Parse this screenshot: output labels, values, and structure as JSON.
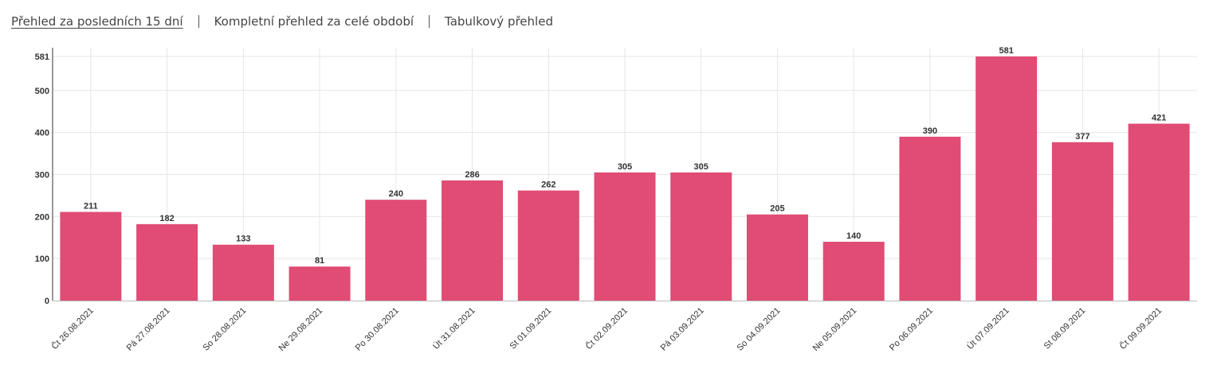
{
  "tabs": [
    {
      "label": "Přehled za posledních 15 dní",
      "active": true
    },
    {
      "label": "Kompletní přehled za celé období",
      "active": false
    },
    {
      "label": "Tabulkový přehled",
      "active": false
    }
  ],
  "colors": {
    "bar": "#e04c74",
    "grid": "#e6e6e6",
    "axis": "#333333"
  },
  "chart_data": {
    "type": "bar",
    "title": "",
    "xlabel": "",
    "ylabel": "",
    "grid": true,
    "ylim": [
      0,
      581
    ],
    "yticks": [
      0,
      100,
      200,
      300,
      400,
      500,
      581
    ],
    "show_data_labels": true,
    "categories": [
      "Čt 26.08.2021",
      "Pá 27.08.2021",
      "So 28.08.2021",
      "Ne 29.08.2021",
      "Po 30.08.2021",
      "Út 31.08.2021",
      "St 01.09.2021",
      "Čt 02.09.2021",
      "Pá 03.09.2021",
      "So 04.09.2021",
      "Ne 05.09.2021",
      "Po 06.09.2021",
      "Út 07.09.2021",
      "St 08.09.2021",
      "Čt 09.09.2021"
    ],
    "values": [
      211,
      182,
      133,
      81,
      240,
      286,
      262,
      305,
      305,
      205,
      140,
      390,
      581,
      377,
      421
    ]
  }
}
